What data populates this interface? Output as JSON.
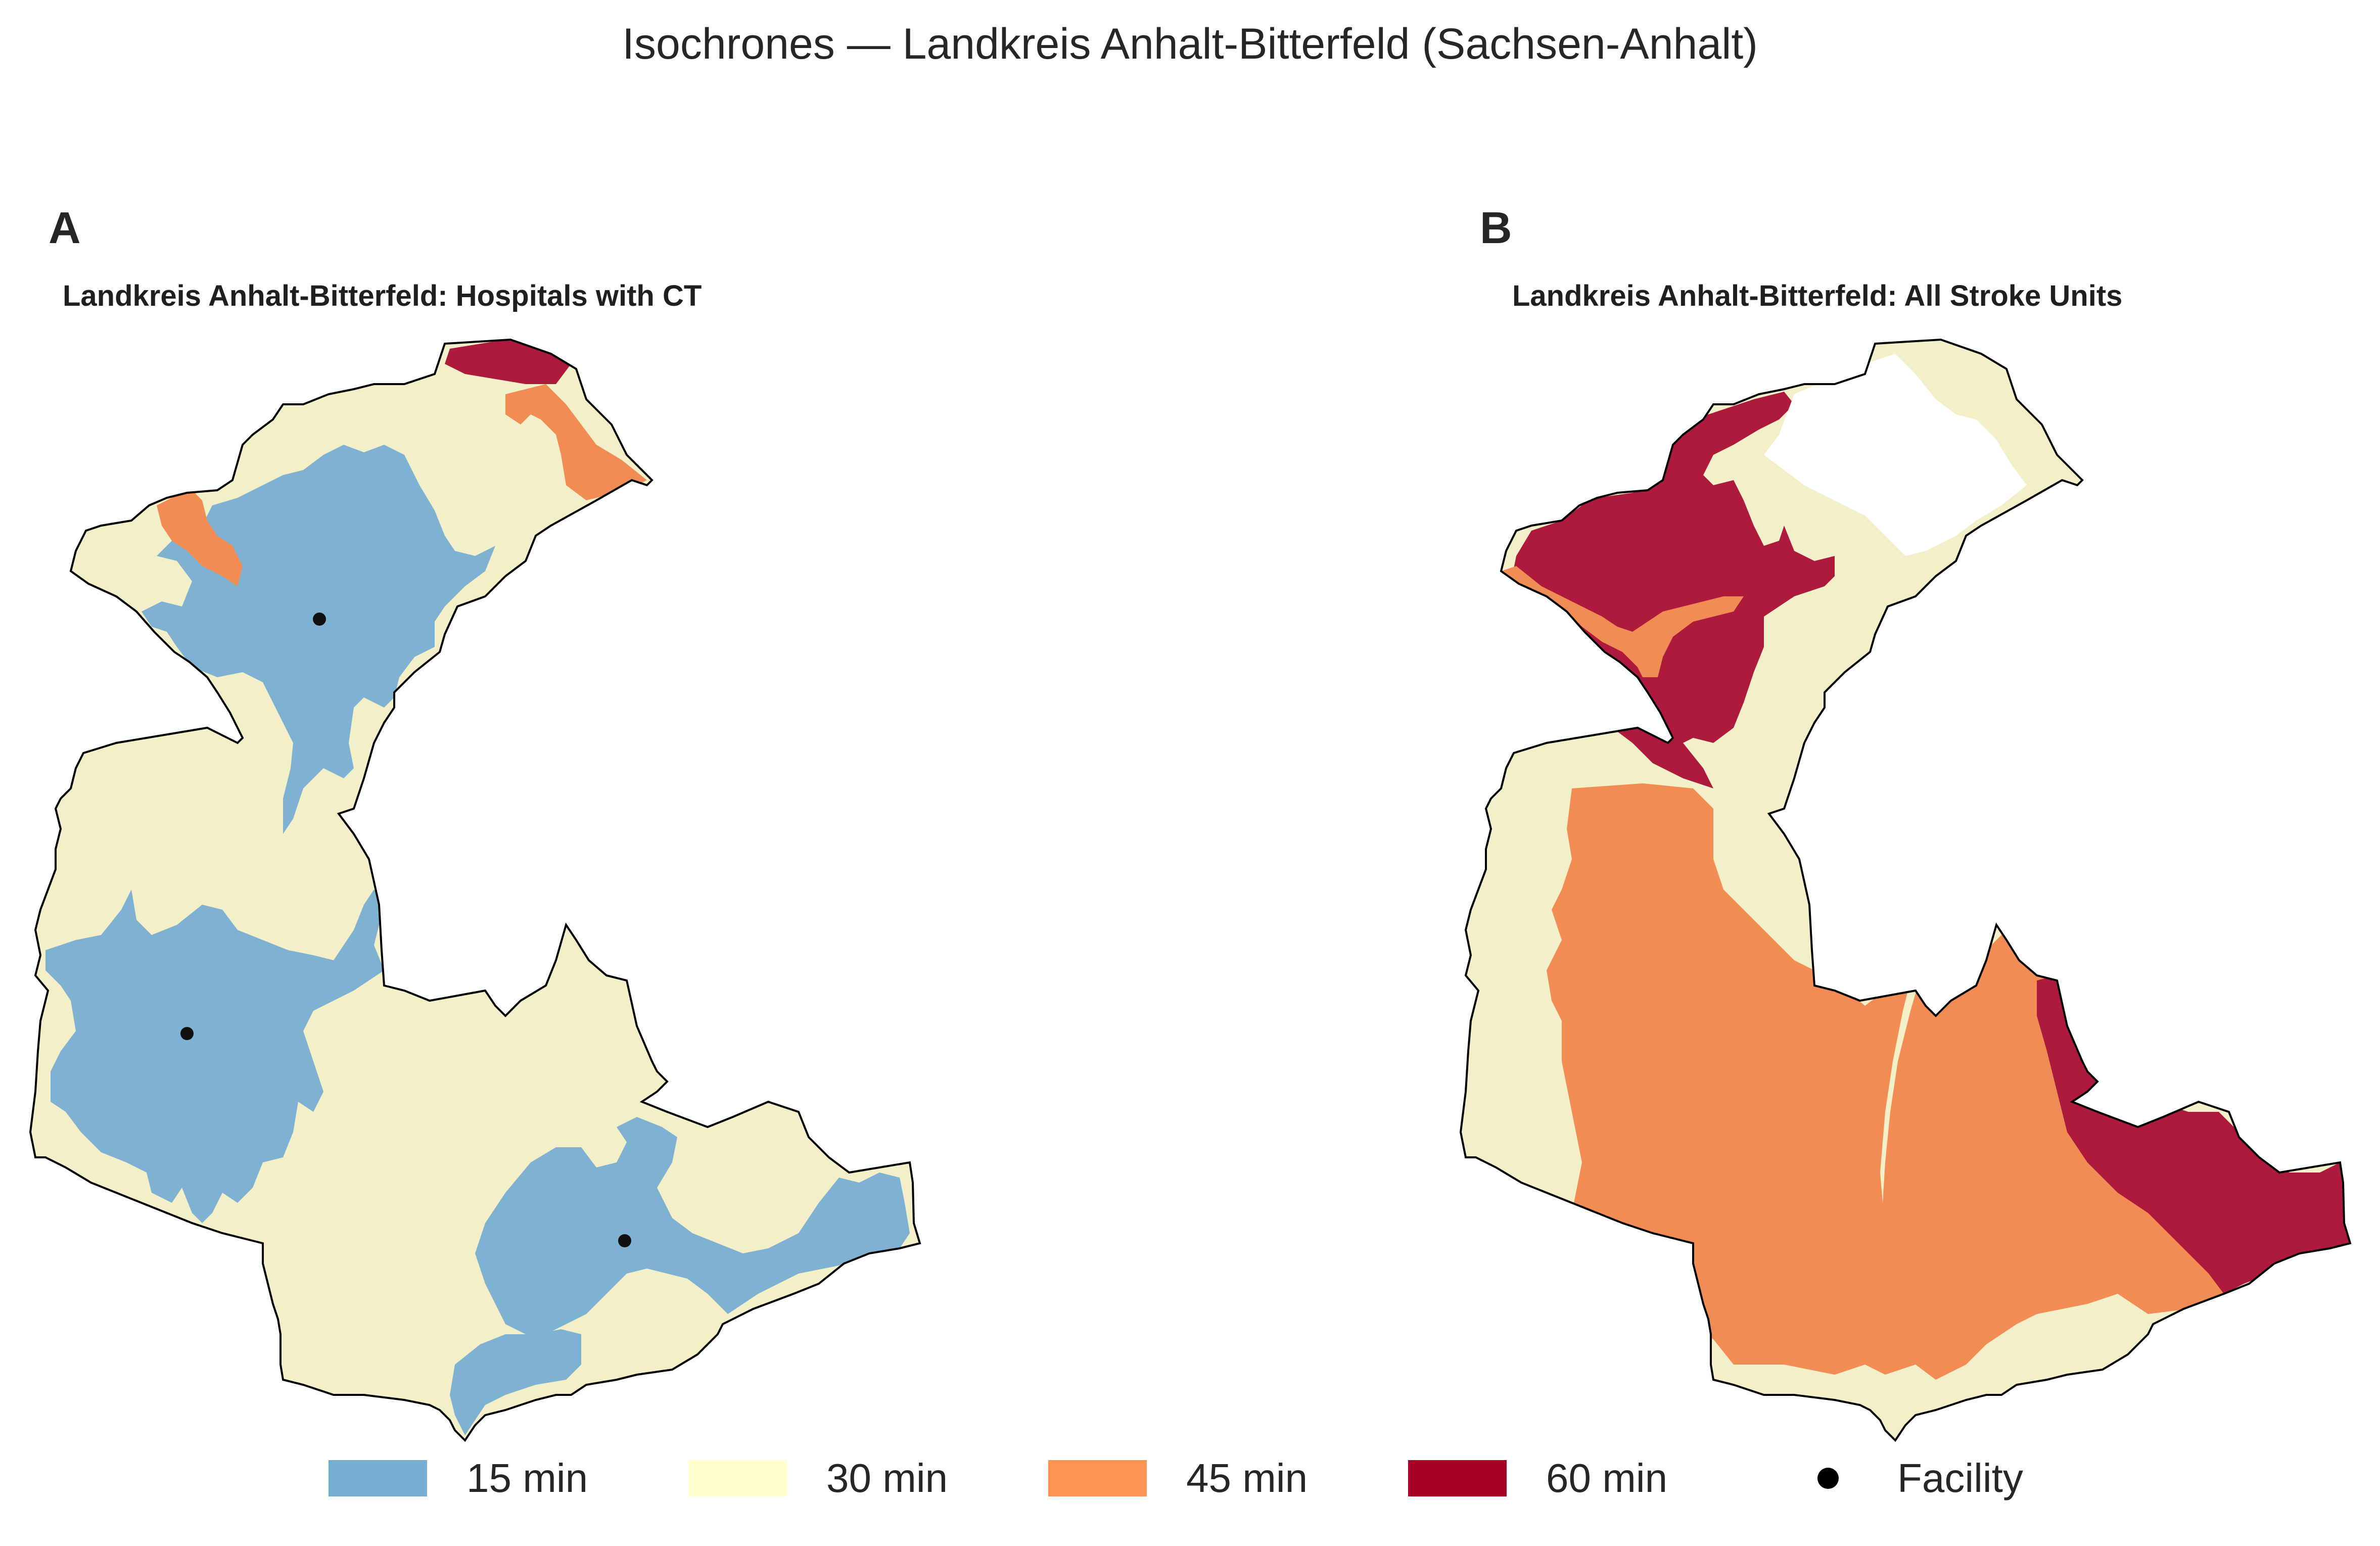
{
  "figure": {
    "title": "Isochrones — Landkreis Anhalt-Bitterfeld (Sachsen-Anhalt)"
  },
  "colors": {
    "min15": "#7fb1d2",
    "min30": "#f3efc8",
    "min45": "#f28c55",
    "min60": "#ad1a3c",
    "facility": "#111111",
    "boundary": "#000000",
    "legend_15": "#74add1",
    "legend_30": "#ffffcc",
    "legend_45": "#fc9553",
    "legend_60": "#a50026"
  },
  "panels": [
    {
      "letter": "A",
      "title": "Landkreis Anhalt-Bitterfeld: Hospitals with CT",
      "facilities_shown": 3
    },
    {
      "letter": "B",
      "title": "Landkreis Anhalt-Bitterfeld: All Stroke Units",
      "facilities_shown": 0
    }
  ],
  "legend": {
    "items": [
      {
        "label": "15 min",
        "color": "#74add1",
        "icon": "swatch"
      },
      {
        "label": "30 min",
        "color": "#ffffcc",
        "icon": "swatch"
      },
      {
        "label": "45 min",
        "color": "#fc9553",
        "icon": "swatch"
      },
      {
        "label": "60 min",
        "color": "#a50026",
        "icon": "swatch"
      },
      {
        "label": "Facility",
        "color": "#000000",
        "icon": "dot"
      }
    ]
  }
}
